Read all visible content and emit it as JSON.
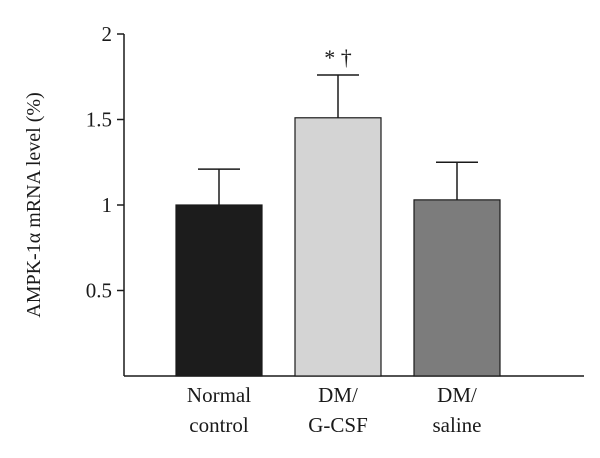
{
  "chart_data": {
    "type": "bar",
    "categories": [
      [
        "Normal",
        "control"
      ],
      [
        "DM/",
        "G-CSF"
      ],
      [
        "DM/",
        "saline"
      ]
    ],
    "values": [
      1.0,
      1.51,
      1.03
    ],
    "errors": [
      0.21,
      0.25,
      0.22
    ],
    "colors": [
      "#1c1c1c",
      "#d4d4d4",
      "#7c7c7c"
    ],
    "ylabel": "AMPK-1α mRNA level (%)",
    "ylim": [
      0,
      2
    ],
    "yticks": [
      "0.5",
      "1",
      "1.5",
      "2"
    ],
    "annotations": [
      {
        "category_index": 1,
        "text": "*  †"
      }
    ],
    "grid": false
  }
}
